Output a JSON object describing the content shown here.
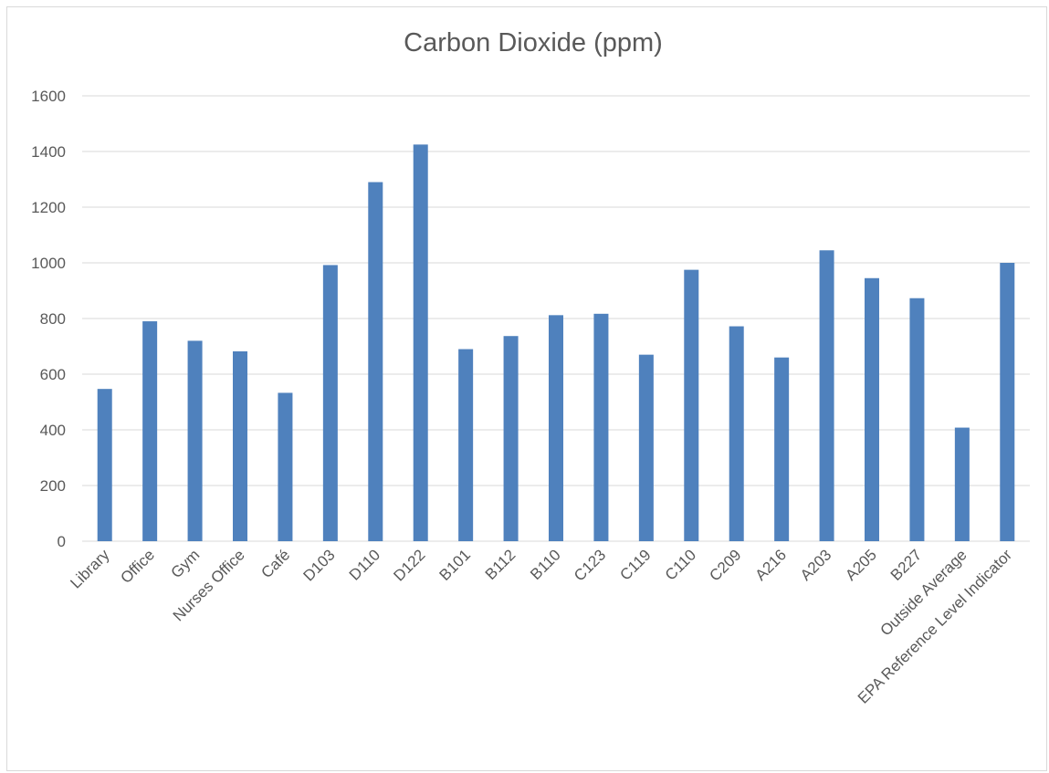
{
  "chart_data": {
    "type": "bar",
    "title": "Carbon Dioxide (ppm)",
    "xlabel": "",
    "ylabel": "",
    "ylim": [
      0,
      1600
    ],
    "yticks": [
      0,
      200,
      400,
      600,
      800,
      1000,
      1200,
      1400,
      1600
    ],
    "grid": true,
    "legend": "none",
    "bar_color": "#4f81bd",
    "categories": [
      "Library",
      "Office",
      "Gym",
      "Nurses Office",
      "Café",
      "D103",
      "D110",
      "D122",
      "B101",
      "B112",
      "B110",
      "C123",
      "C119",
      "C110",
      "C209",
      "A216",
      "A203",
      "A205",
      "B227",
      "Outside Average",
      "EPA Reference Level Indicator"
    ],
    "values": [
      547,
      790,
      720,
      682,
      533,
      992,
      1290,
      1425,
      690,
      737,
      812,
      817,
      670,
      975,
      772,
      660,
      1045,
      945,
      873,
      408,
      1000
    ]
  }
}
